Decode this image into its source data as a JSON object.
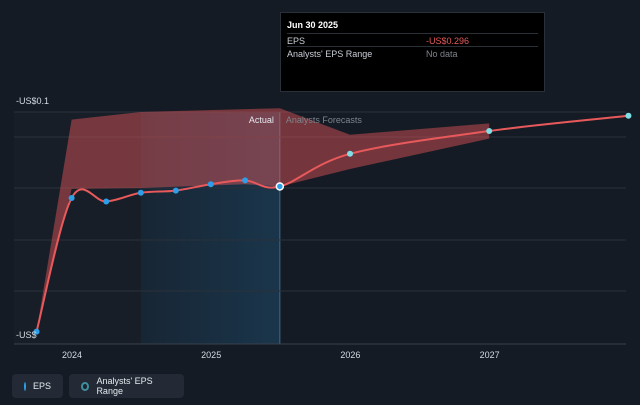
{
  "tooltip": {
    "date": "Jun 30 2025",
    "rows": [
      {
        "label": "EPS",
        "value": "-US$0.296",
        "color": "#e8595b"
      },
      {
        "label": "Analysts' EPS Range",
        "value": "No data",
        "color": "#7e848c"
      }
    ]
  },
  "legend": [
    {
      "label": "EPS",
      "color": "#2f9ee8"
    },
    {
      "label": "Analysts' EPS Range",
      "color": "#3d8f9c"
    }
  ],
  "chart_data": {
    "type": "line",
    "y_top_label": "-US$0.1",
    "y_bottom_label": "-US$",
    "x_ticks": [
      "2024",
      "2025",
      "2026",
      "2027"
    ],
    "section_labels": {
      "actual": "Actual",
      "forecast": "Analysts Forecasts"
    },
    "colors": {
      "line": "#e8595b",
      "actual_point": "#2f9ee8",
      "forecast_point": "#7ee0e6",
      "range": "#e8595b",
      "actual_band": "#1b3a52"
    },
    "series": [
      {
        "values": [
          {
            "x": "2023-09-30",
            "y": -1.95
          },
          {
            "x": "2023-12-31",
            "y": -0.415
          },
          {
            "x": "2024-03-31",
            "y": -0.455
          },
          {
            "x": "2024-06-30",
            "y": -0.355
          },
          {
            "x": "2024-09-30",
            "y": -0.33
          },
          {
            "x": "2024-12-31",
            "y": -0.29
          },
          {
            "x": "2025-03-31",
            "y": -0.28
          },
          {
            "x": "2025-06-30",
            "y": -0.296
          },
          {
            "x": "2025-12-31",
            "y": -0.21
          },
          {
            "x": "2026-12-31",
            "y": -0.15
          },
          {
            "x": "2027-12-31",
            "y": -0.11
          }
        ]
      }
    ],
    "range_band": {
      "upper": [
        {
          "x": "2023-12-31",
          "y": -0.12
        },
        {
          "x": "2024-06-30",
          "y": -0.1
        },
        {
          "x": "2025-06-30",
          "y": -0.09
        },
        {
          "x": "2025-12-31",
          "y": -0.16
        },
        {
          "x": "2026-12-31",
          "y": -0.13
        }
      ],
      "lower": [
        {
          "x": "2023-12-31",
          "y": -0.31
        },
        {
          "x": "2024-06-30",
          "y": -0.3
        },
        {
          "x": "2025-03-31",
          "y": -0.29
        },
        {
          "x": "2025-06-30",
          "y": -0.296
        },
        {
          "x": "2025-12-31",
          "y": -0.25
        },
        {
          "x": "2026-12-31",
          "y": -0.17
        }
      ]
    },
    "actual_band": {
      "x_start": "2024-06-30",
      "x_end": "2025-06-30"
    },
    "grid": true
  }
}
